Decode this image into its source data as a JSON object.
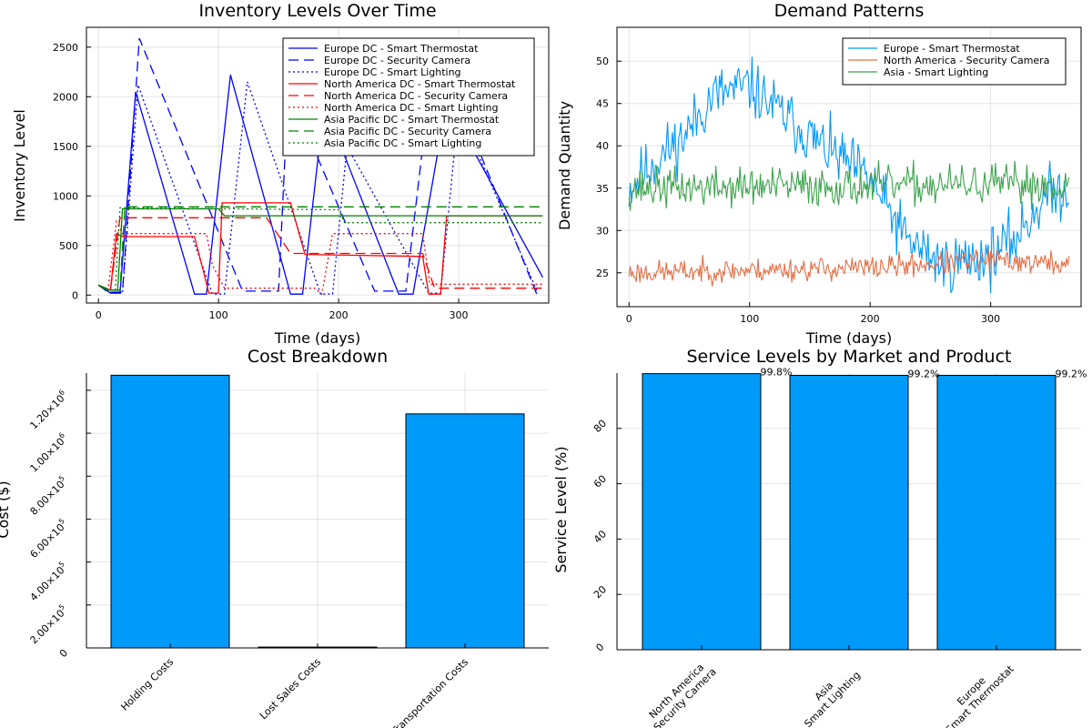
{
  "chart_data": [
    {
      "type": "line",
      "title": "Inventory Levels Over Time",
      "xlabel": "Time (days)",
      "ylabel": "Inventory Level",
      "xlim": [
        -10,
        375
      ],
      "ylim": [
        -80,
        2700
      ],
      "xticks": [
        0,
        100,
        200,
        300
      ],
      "yticks": [
        0,
        500,
        1000,
        1500,
        2000,
        2500
      ],
      "grid": true,
      "legend_position": "top-right",
      "series": [
        {
          "name": "Europe DC - Smart Thermostat",
          "color": "#0000ff",
          "dash": "solid",
          "points": [
            [
              0,
              100
            ],
            [
              10,
              20
            ],
            [
              18,
              20
            ],
            [
              31,
              2050
            ],
            [
              80,
              10
            ],
            [
              90,
              10
            ],
            [
              110,
              2220
            ],
            [
              160,
              10
            ],
            [
              170,
              10
            ],
            [
              188,
              1930
            ],
            [
              250,
              10
            ],
            [
              262,
              10
            ],
            [
              290,
              1950
            ],
            [
              370,
              180
            ]
          ]
        },
        {
          "name": "Europe DC - Security Camera",
          "color": "#0000ff",
          "dash": "dash",
          "points": [
            [
              0,
              100
            ],
            [
              8,
              30
            ],
            [
              20,
              30
            ],
            [
              34,
              2590
            ],
            [
              120,
              40
            ],
            [
              150,
              40
            ],
            [
              158,
              2080
            ],
            [
              230,
              40
            ],
            [
              256,
              40
            ],
            [
              275,
              2010
            ],
            [
              300,
              1970
            ],
            [
              365,
              10
            ]
          ]
        },
        {
          "name": "Europe DC - Smart Lighting",
          "color": "#0000ff",
          "dash": "dot",
          "points": [
            [
              0,
              100
            ],
            [
              12,
              20
            ],
            [
              20,
              20
            ],
            [
              33,
              2120
            ],
            [
              95,
              10
            ],
            [
              105,
              10
            ],
            [
              124,
              2150
            ],
            [
              185,
              10
            ],
            [
              195,
              10
            ],
            [
              207,
              1500
            ],
            [
              275,
              20
            ],
            [
              285,
              20
            ],
            [
              300,
              1880
            ],
            [
              366,
              20
            ]
          ]
        },
        {
          "name": "North America DC - Smart Thermostat",
          "color": "#ff0000",
          "dash": "solid",
          "points": [
            [
              0,
              100
            ],
            [
              10,
              50
            ],
            [
              15,
              620
            ],
            [
              20,
              590
            ],
            [
              80,
              590
            ],
            [
              92,
              20
            ],
            [
              100,
              20
            ],
            [
              103,
              930
            ],
            [
              160,
              930
            ],
            [
              172,
              410
            ],
            [
              270,
              390
            ],
            [
              275,
              10
            ],
            [
              285,
              10
            ],
            [
              290,
              800
            ],
            [
              370,
              800
            ]
          ]
        },
        {
          "name": "North America DC - Security Camera",
          "color": "#ff0000",
          "dash": "dash",
          "points": [
            [
              0,
              100
            ],
            [
              10,
              50
            ],
            [
              18,
              780
            ],
            [
              140,
              780
            ],
            [
              150,
              600
            ],
            [
              160,
              420
            ],
            [
              270,
              420
            ],
            [
              280,
              70
            ],
            [
              370,
              70
            ]
          ]
        },
        {
          "name": "North America DC - Smart Lighting",
          "color": "#ff0000",
          "dash": "dot",
          "points": [
            [
              0,
              100
            ],
            [
              8,
              60
            ],
            [
              15,
              740
            ],
            [
              20,
              620
            ],
            [
              90,
              620
            ],
            [
              95,
              300
            ],
            [
              105,
              70
            ],
            [
              180,
              70
            ],
            [
              186,
              10
            ],
            [
              195,
              620
            ],
            [
              270,
              620
            ],
            [
              276,
              110
            ],
            [
              370,
              110
            ]
          ]
        },
        {
          "name": "Asia Pacific DC - Smart Thermostat",
          "color": "#008000",
          "dash": "solid",
          "points": [
            [
              0,
              100
            ],
            [
              8,
              50
            ],
            [
              16,
              50
            ],
            [
              20,
              870
            ],
            [
              100,
              870
            ],
            [
              105,
              800
            ],
            [
              370,
              800
            ]
          ]
        },
        {
          "name": "Asia Pacific DC - Security Camera",
          "color": "#008000",
          "dash": "dash",
          "points": [
            [
              0,
              100
            ],
            [
              10,
              50
            ],
            [
              18,
              50
            ],
            [
              22,
              890
            ],
            [
              370,
              890
            ]
          ]
        },
        {
          "name": "Asia Pacific DC - Smart Lighting",
          "color": "#008000",
          "dash": "dot",
          "points": [
            [
              0,
              100
            ],
            [
              6,
              50
            ],
            [
              14,
              50
            ],
            [
              18,
              880
            ],
            [
              200,
              860
            ],
            [
              205,
              730
            ],
            [
              370,
              730
            ]
          ]
        }
      ]
    },
    {
      "type": "line",
      "title": "Demand Patterns",
      "xlabel": "Time (days)",
      "ylabel": "Demand Quantity",
      "xlim": [
        -10,
        375
      ],
      "ylim": [
        21,
        54
      ],
      "xticks": [
        0,
        100,
        200,
        300
      ],
      "yticks": [
        25,
        30,
        35,
        40,
        45,
        50
      ],
      "grid": true,
      "legend_position": "top-right",
      "series": [
        {
          "name": "Europe - Smart Thermostat",
          "color": "#009af9",
          "trend": [
            [
              0,
              35
            ],
            [
              20,
              38
            ],
            [
              45,
              41
            ],
            [
              70,
              46
            ],
            [
              100,
              47
            ],
            [
              125,
              44
            ],
            [
              160,
              40
            ],
            [
              200,
              36
            ],
            [
              230,
              29
            ],
            [
              260,
              26
            ],
            [
              300,
              27
            ],
            [
              320,
              29
            ],
            [
              345,
              34
            ],
            [
              365,
              35
            ]
          ],
          "noise": 3.2,
          "seed": 11
        },
        {
          "name": "North America - Security Camera",
          "color": "#e26f46",
          "trend": [
            [
              0,
              25
            ],
            [
              200,
              25.6
            ],
            [
              300,
              26.5
            ],
            [
              365,
              26
            ]
          ],
          "noise": 1.3,
          "seed": 23
        },
        {
          "name": "Asia - Smart Lighting",
          "color": "#3da44d",
          "trend": [
            [
              0,
              35
            ],
            [
              365,
              35.5
            ]
          ],
          "noise": 2.2,
          "seed": 37
        }
      ]
    },
    {
      "type": "bar",
      "title": "Cost Breakdown",
      "xlabel": "",
      "ylabel": "Cost ($)",
      "categories": [
        "Holding Costs",
        "Lost Sales Costs",
        "Transportation Costs"
      ],
      "values": [
        1270000,
        4000,
        1090000
      ],
      "ylim": [
        0,
        1280000
      ],
      "yticks": [
        0,
        200000,
        400000,
        600000,
        800000,
        1000000,
        1200000
      ],
      "ytick_labels": [
        {
          "mant": "0",
          "exp": ""
        },
        {
          "mant": "2.00×10",
          "exp": "5"
        },
        {
          "mant": "4.00×10",
          "exp": "5"
        },
        {
          "mant": "6.00×10",
          "exp": "5"
        },
        {
          "mant": "8.00×10",
          "exp": "5"
        },
        {
          "mant": "1.00×10",
          "exp": "6"
        },
        {
          "mant": "1.20×10",
          "exp": "6"
        }
      ],
      "bar_color": "#009af9",
      "grid": true
    },
    {
      "type": "bar",
      "title": "Service Levels by Market and Product",
      "xlabel": "",
      "ylabel": "Service Level (%)",
      "categories": [
        [
          "North America",
          "Security Camera"
        ],
        [
          "Asia",
          "Smart Lighting"
        ],
        [
          "Europe",
          "Smart Thermostat"
        ]
      ],
      "values": [
        99.8,
        99.2,
        99.2
      ],
      "data_labels": [
        "99.8%",
        "99.2%",
        "99.2%"
      ],
      "ylim": [
        0,
        100
      ],
      "yticks": [
        0,
        20,
        40,
        60,
        80
      ],
      "bar_color": "#009af9",
      "grid": true
    }
  ]
}
